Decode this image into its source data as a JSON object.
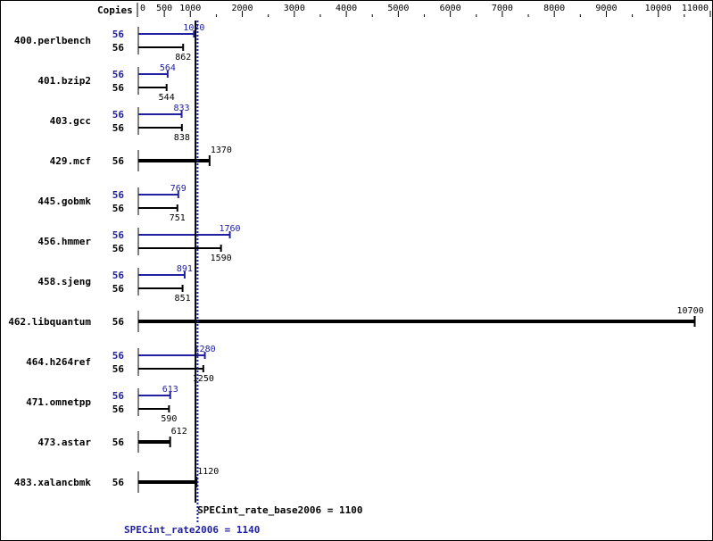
{
  "chart_data": {
    "type": "bar",
    "orientation": "horizontal",
    "axis_label": "Copies",
    "xlim": [
      0,
      11000
    ],
    "ticks": [
      0,
      500,
      1000,
      2000,
      3000,
      4000,
      5000,
      6000,
      7000,
      8000,
      9000,
      10000,
      11000
    ],
    "colors": {
      "base": "#000000",
      "peak": "#2020a0"
    },
    "benchmarks": [
      {
        "name": "400.perlbench",
        "copies_peak": "56",
        "copies_base": "56",
        "peak": 1070,
        "base": 862
      },
      {
        "name": "401.bzip2",
        "copies_peak": "56",
        "copies_base": "56",
        "peak": 564,
        "base": 544
      },
      {
        "name": "403.gcc",
        "copies_peak": "56",
        "copies_base": "56",
        "peak": 833,
        "base": 838
      },
      {
        "name": "429.mcf",
        "copies_base": "56",
        "base": 1370
      },
      {
        "name": "445.gobmk",
        "copies_peak": "56",
        "copies_base": "56",
        "peak": 769,
        "base": 751
      },
      {
        "name": "456.hmmer",
        "copies_peak": "56",
        "copies_base": "56",
        "peak": 1760,
        "base": 1590
      },
      {
        "name": "458.sjeng",
        "copies_peak": "56",
        "copies_base": "56",
        "peak": 891,
        "base": 851
      },
      {
        "name": "462.libquantum",
        "copies_base": "56",
        "base": 10700
      },
      {
        "name": "464.h264ref",
        "copies_peak": "56",
        "copies_base": "56",
        "peak": 1280,
        "base": 1250
      },
      {
        "name": "471.omnetpp",
        "copies_peak": "56",
        "copies_base": "56",
        "peak": 613,
        "base": 590
      },
      {
        "name": "473.astar",
        "copies_base": "56",
        "base": 612
      },
      {
        "name": "483.xalancbmk",
        "copies_base": "56",
        "base": 1120
      }
    ],
    "base_summary": {
      "label": "SPECint_rate_base2006 = 1100",
      "value": 1100
    },
    "peak_summary": {
      "label": "SPECint_rate2006 = 1140",
      "value": 1140
    }
  }
}
